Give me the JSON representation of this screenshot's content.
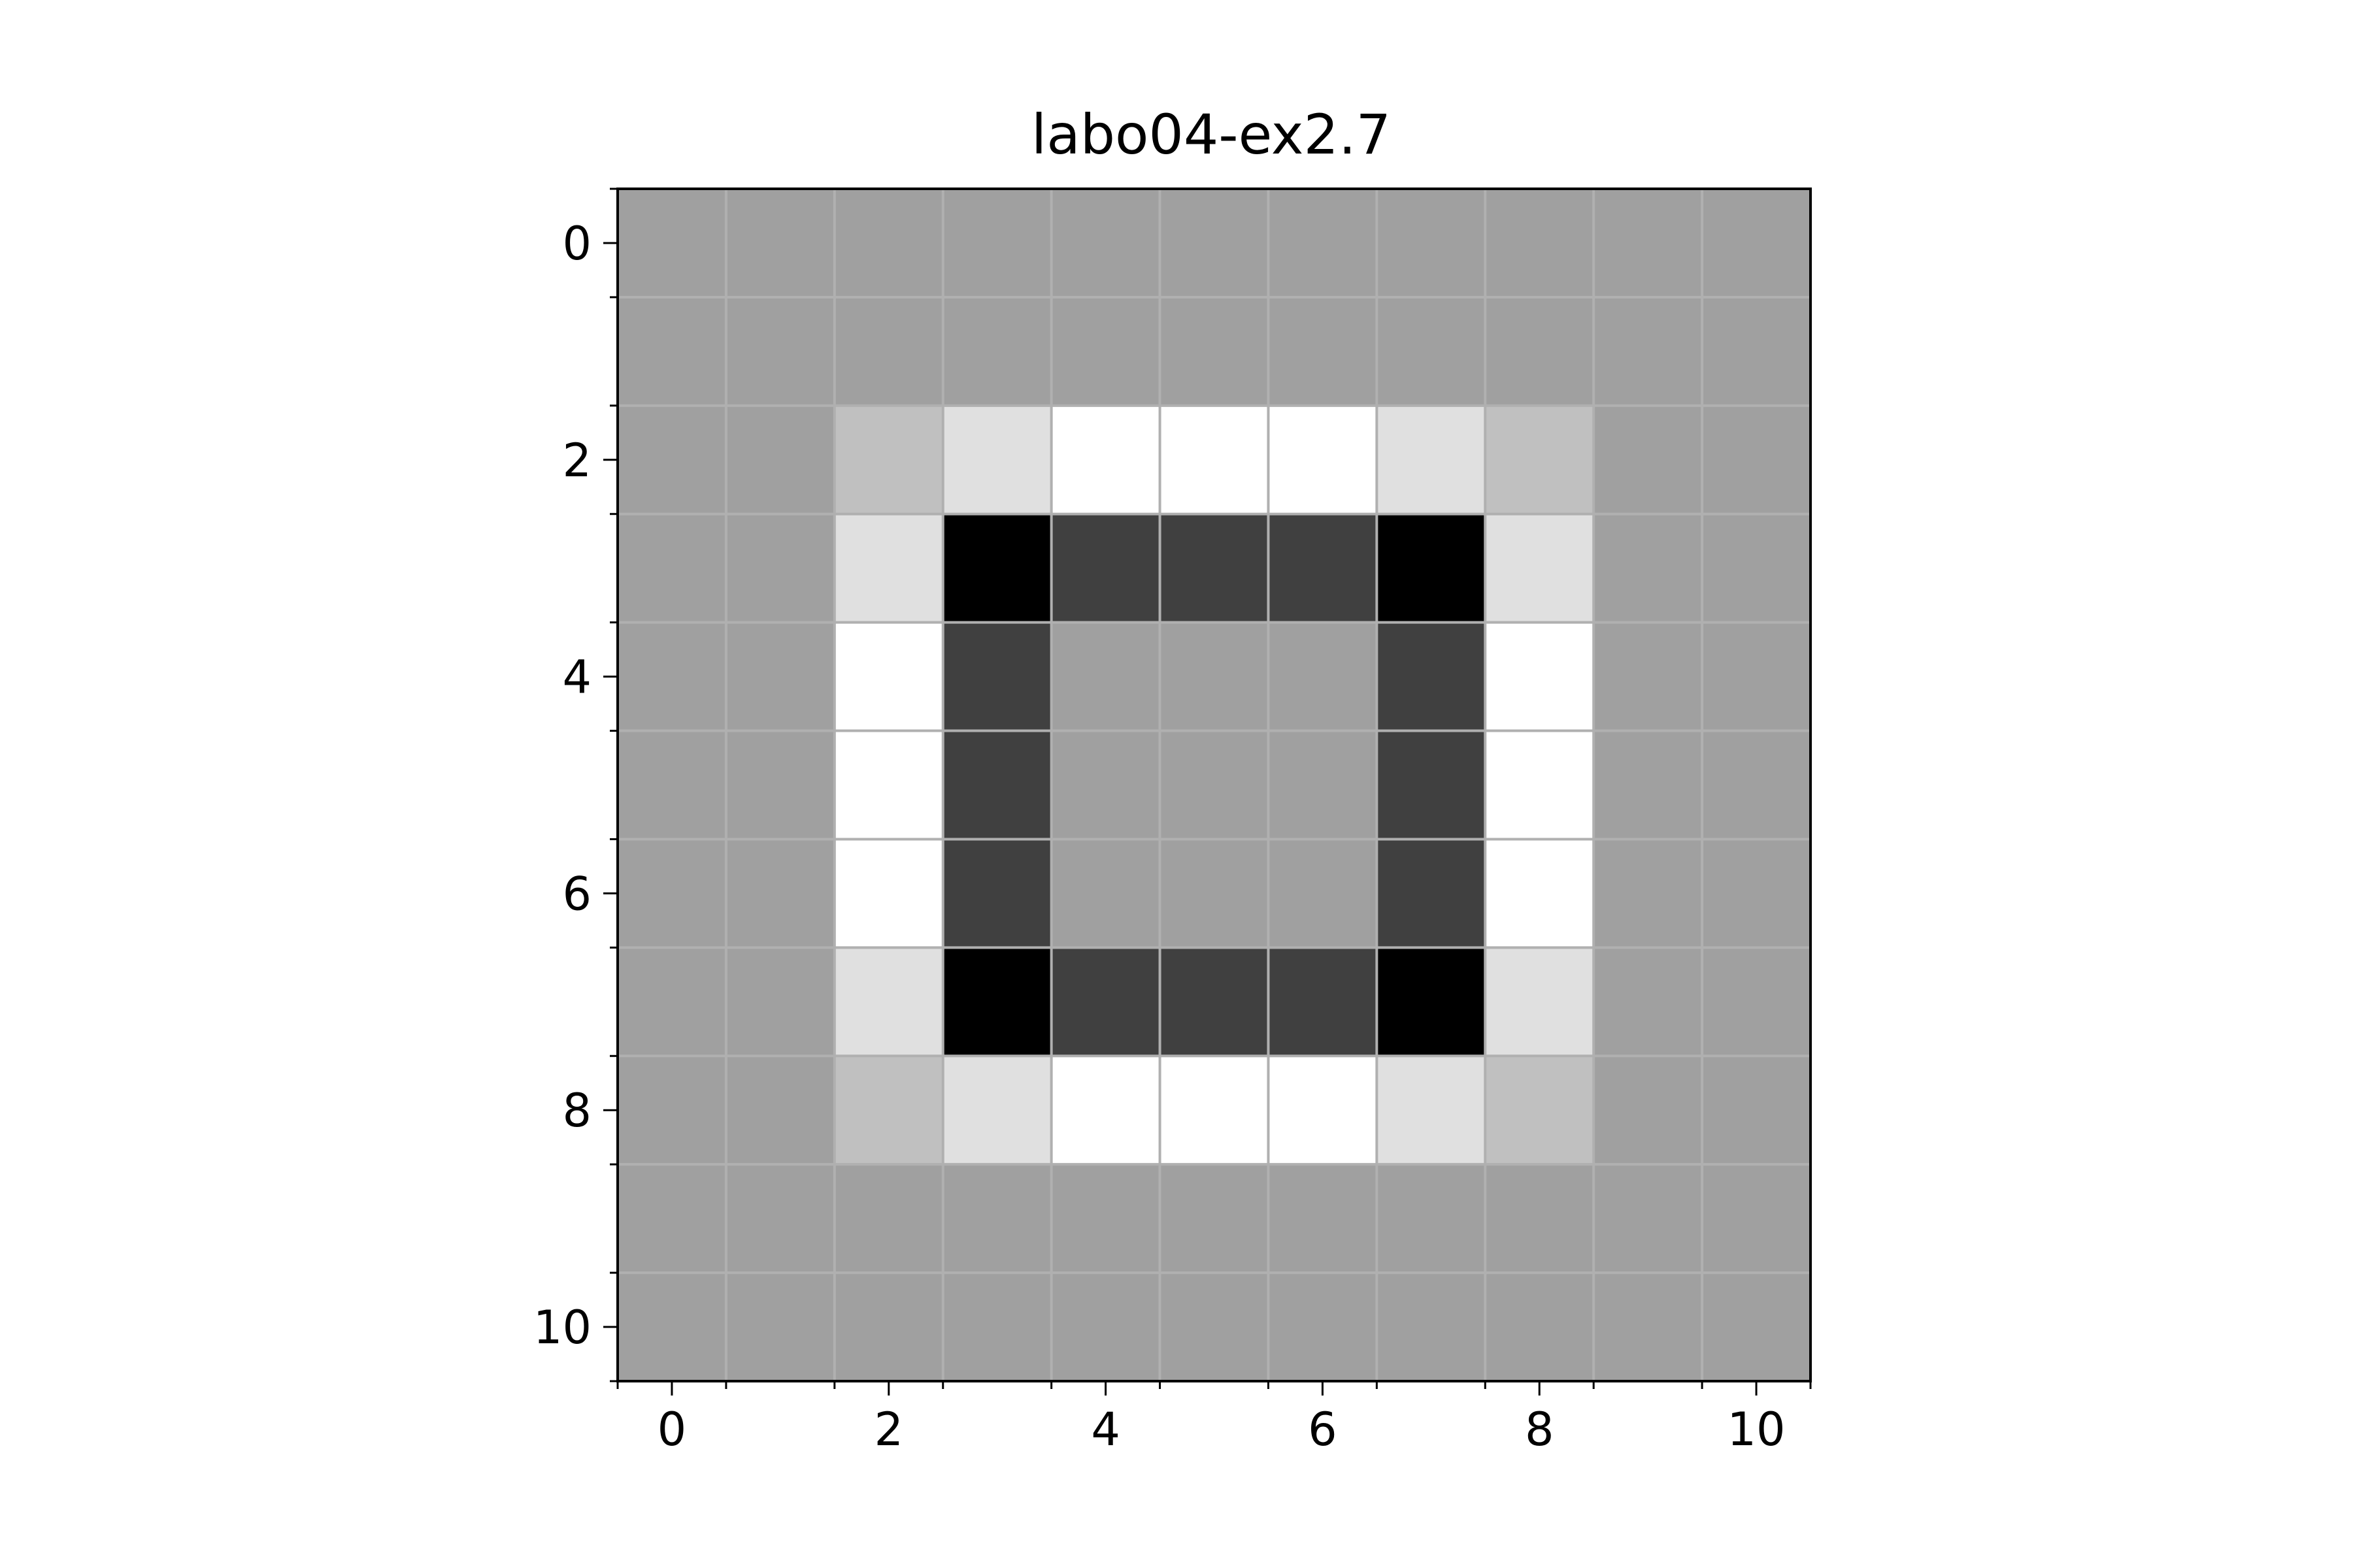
{
  "chart_data": {
    "type": "heatmap",
    "title": "labo04-ex2.7",
    "xlabel": "",
    "ylabel": "",
    "colormap": "gray",
    "value_range": [
      0,
      255
    ],
    "xlim": [
      -0.5,
      10.5
    ],
    "ylim": [
      10.5,
      -0.5
    ],
    "x_ticks": [
      0,
      2,
      4,
      6,
      8,
      10
    ],
    "y_ticks": [
      0,
      2,
      4,
      6,
      8,
      10
    ],
    "x_tick_labels": [
      "0",
      "2",
      "4",
      "6",
      "8",
      "10"
    ],
    "y_tick_labels": [
      "0",
      "2",
      "4",
      "6",
      "8",
      "10"
    ],
    "x_minor_ticks": [
      -0.5,
      0.5,
      1.5,
      2.5,
      3.5,
      4.5,
      5.5,
      6.5,
      7.5,
      8.5,
      9.5,
      10.5
    ],
    "y_minor_ticks": [
      -0.5,
      0.5,
      1.5,
      2.5,
      3.5,
      4.5,
      5.5,
      6.5,
      7.5,
      8.5,
      9.5,
      10.5
    ],
    "grid": true,
    "grid_color": "#b0b0b0",
    "values": [
      [
        160,
        160,
        160,
        160,
        160,
        160,
        160,
        160,
        160,
        160,
        160
      ],
      [
        160,
        160,
        160,
        160,
        160,
        160,
        160,
        160,
        160,
        160,
        160
      ],
      [
        160,
        160,
        192,
        224,
        255,
        255,
        255,
        224,
        192,
        160,
        160
      ],
      [
        160,
        160,
        224,
        0,
        64,
        64,
        64,
        0,
        224,
        160,
        160
      ],
      [
        160,
        160,
        255,
        64,
        160,
        160,
        160,
        64,
        255,
        160,
        160
      ],
      [
        160,
        160,
        255,
        64,
        160,
        160,
        160,
        64,
        255,
        160,
        160
      ],
      [
        160,
        160,
        255,
        64,
        160,
        160,
        160,
        64,
        255,
        160,
        160
      ],
      [
        160,
        160,
        224,
        0,
        64,
        64,
        64,
        0,
        224,
        160,
        160
      ],
      [
        160,
        160,
        192,
        224,
        255,
        255,
        255,
        224,
        192,
        160,
        160
      ],
      [
        160,
        160,
        160,
        160,
        160,
        160,
        160,
        160,
        160,
        160,
        160
      ],
      [
        160,
        160,
        160,
        160,
        160,
        160,
        160,
        160,
        160,
        160,
        160
      ]
    ]
  }
}
